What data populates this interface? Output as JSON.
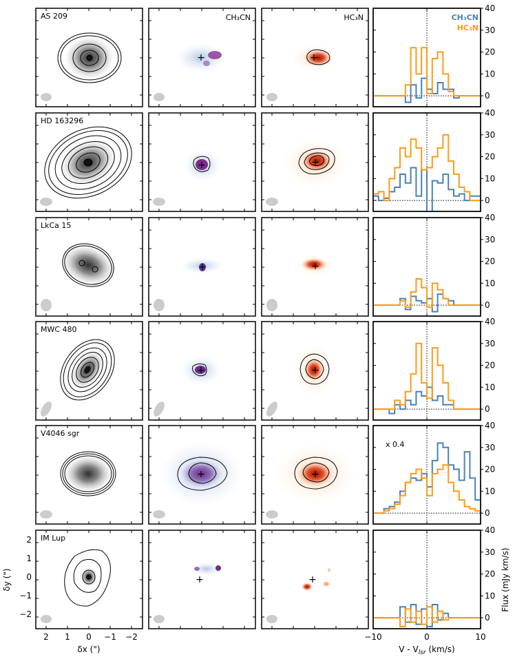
{
  "figure": {
    "column_titles": {
      "ch3cn": "CH₃CN",
      "hc3n": "HC₃N"
    },
    "x_label": "δx (\")",
    "y_label": "δy (\")",
    "spec_x_label": "V - V",
    "spec_x_label_sub": "lsr",
    "spec_x_label_unit": " (km/s)",
    "spec_y_label": "Flux (mJy km/s)",
    "map_x_ticks": [
      "2",
      "1",
      "0",
      "−1",
      "−2"
    ],
    "map_y_ticks": [
      "2",
      "1",
      "0",
      "−1",
      "−2"
    ],
    "colors": {
      "ch3cn": "#4682b4",
      "hc3n": "#ff9a14",
      "continuum": "#555555",
      "beam": "#cccccc"
    }
  },
  "chart_data": {
    "type": "line",
    "panels": "6 sources × (continuum map, CH3CN moment-0 map, HC3N moment-0 map, disk-integrated spectrum)",
    "spectrum_xlim": [
      -10,
      10
    ],
    "spectrum_ylim": [
      -5,
      40
    ],
    "spectrum_xticks": [
      -10,
      0,
      10
    ],
    "spectrum_yticks": [
      0,
      10,
      20,
      30,
      40
    ],
    "legend": [
      {
        "label": "CH₃CN",
        "color": "#4682b4"
      },
      {
        "label": "HC₃N",
        "color": "#ff9a14"
      }
    ],
    "sources": [
      {
        "name": "AS 209",
        "annotation": "",
        "ch3cn": {
          "v": [
            -10,
            -5,
            -4,
            -3,
            -2,
            -1,
            0,
            1,
            2,
            3,
            4,
            5,
            6,
            7,
            8,
            10
          ],
          "y": [
            0,
            0,
            -3,
            5,
            -1,
            8,
            3,
            1,
            6,
            3,
            3,
            -1,
            0,
            0,
            0,
            0
          ]
        },
        "hc3n": {
          "v": [
            -10,
            -5,
            -4,
            -3,
            -2,
            -1,
            0,
            1,
            2,
            3,
            4,
            5,
            6,
            7,
            8,
            10
          ],
          "y": [
            0,
            0,
            5,
            22,
            10,
            22,
            1,
            17,
            20,
            10,
            2,
            0,
            0,
            0,
            0,
            0
          ]
        }
      },
      {
        "name": "HD 163296",
        "annotation": "",
        "ch3cn": {
          "v": [
            -10,
            -9,
            -8,
            -7,
            -6,
            -5,
            -4,
            -3,
            -2,
            -1,
            0,
            1,
            2,
            3,
            4,
            5,
            6,
            7,
            8,
            10
          ],
          "y": [
            2,
            0,
            1,
            4,
            6,
            12,
            8,
            15,
            2,
            14,
            -5,
            9,
            8,
            12,
            5,
            2,
            3,
            0,
            2,
            2
          ]
        },
        "hc3n": {
          "v": [
            -10,
            -9,
            -8,
            -7,
            -6,
            -5,
            -4,
            -3,
            -2,
            -1,
            0,
            1,
            2,
            3,
            4,
            5,
            6,
            7,
            8,
            10
          ],
          "y": [
            3,
            4,
            0,
            10,
            15,
            24,
            20,
            28,
            24,
            14,
            15,
            20,
            24,
            30,
            18,
            12,
            6,
            4,
            0,
            0
          ]
        }
      },
      {
        "name": "LkCa 15",
        "annotation": "",
        "ch3cn": {
          "v": [
            -10,
            -6,
            -5,
            -4,
            -3,
            -2,
            -1,
            0,
            1,
            2,
            3,
            4,
            5,
            6,
            7,
            10
          ],
          "y": [
            0,
            0,
            3,
            -2,
            4,
            2,
            1,
            3,
            -3,
            5,
            3,
            2,
            0,
            0,
            0,
            0
          ]
        },
        "hc3n": {
          "v": [
            -10,
            -6,
            -5,
            -4,
            -3,
            -2,
            -1,
            0,
            1,
            2,
            3,
            4,
            5,
            6,
            7,
            10
          ],
          "y": [
            0,
            0,
            2,
            -1,
            6,
            12,
            8,
            -1,
            10,
            7,
            3,
            0,
            0,
            0,
            0,
            0
          ]
        }
      },
      {
        "name": "MWC 480",
        "annotation": "",
        "ch3cn": {
          "v": [
            -10,
            -8,
            -7,
            -6,
            -5,
            -4,
            -3,
            -2,
            -1,
            0,
            1,
            2,
            3,
            4,
            5,
            6,
            7,
            10
          ],
          "y": [
            0,
            0,
            -2,
            2,
            0,
            4,
            2,
            8,
            6,
            10,
            4,
            6,
            2,
            2,
            0,
            0,
            0,
            0
          ]
        },
        "hc3n": {
          "v": [
            -10,
            -8,
            -7,
            -6,
            -5,
            -4,
            -3,
            -2,
            -1,
            0,
            1,
            2,
            3,
            4,
            5,
            6,
            7,
            10
          ],
          "y": [
            0,
            0,
            0,
            4,
            2,
            8,
            16,
            30,
            12,
            5,
            28,
            20,
            12,
            4,
            0,
            0,
            0,
            0
          ]
        }
      },
      {
        "name": "V4046 sgr",
        "annotation": "x 0.4",
        "ch3cn": {
          "v": [
            -10,
            -9,
            -8,
            -7,
            -6,
            -5,
            -4,
            -3,
            -2,
            -1,
            0,
            1,
            2,
            3,
            4,
            5,
            6,
            7,
            8,
            9,
            10
          ],
          "y": [
            0,
            0,
            2,
            3,
            5,
            10,
            14,
            16,
            15,
            18,
            12,
            24,
            32,
            30,
            22,
            20,
            15,
            28,
            16,
            6,
            3
          ]
        },
        "hc3n": {
          "v": [
            -10,
            -9,
            -8,
            -7,
            -6,
            -5,
            -4,
            -3,
            -2,
            -1,
            0,
            1,
            2,
            3,
            4,
            5,
            6,
            7,
            8,
            9,
            10
          ],
          "y": [
            0,
            0,
            1,
            2,
            4,
            8,
            14,
            18,
            20,
            16,
            8,
            18,
            20,
            22,
            14,
            10,
            6,
            3,
            2,
            1,
            1
          ]
        }
      },
      {
        "name": "IM Lup",
        "annotation": "",
        "ch3cn": {
          "v": [
            -10,
            -6,
            -5,
            -4,
            -3,
            -2,
            -1,
            0,
            1,
            2,
            3,
            4,
            5,
            6,
            10
          ],
          "y": [
            0,
            0,
            5,
            -2,
            6,
            -3,
            4,
            -4,
            6,
            -1,
            2,
            0,
            0,
            0,
            0
          ]
        },
        "hc3n": {
          "v": [
            -10,
            -6,
            -5,
            -4,
            -3,
            -2,
            -1,
            0,
            1,
            2,
            3,
            4,
            5,
            6,
            10
          ],
          "y": [
            0,
            0,
            -4,
            4,
            -2,
            3,
            -3,
            5,
            -2,
            3,
            -1,
            0,
            0,
            0,
            0
          ]
        }
      }
    ]
  }
}
